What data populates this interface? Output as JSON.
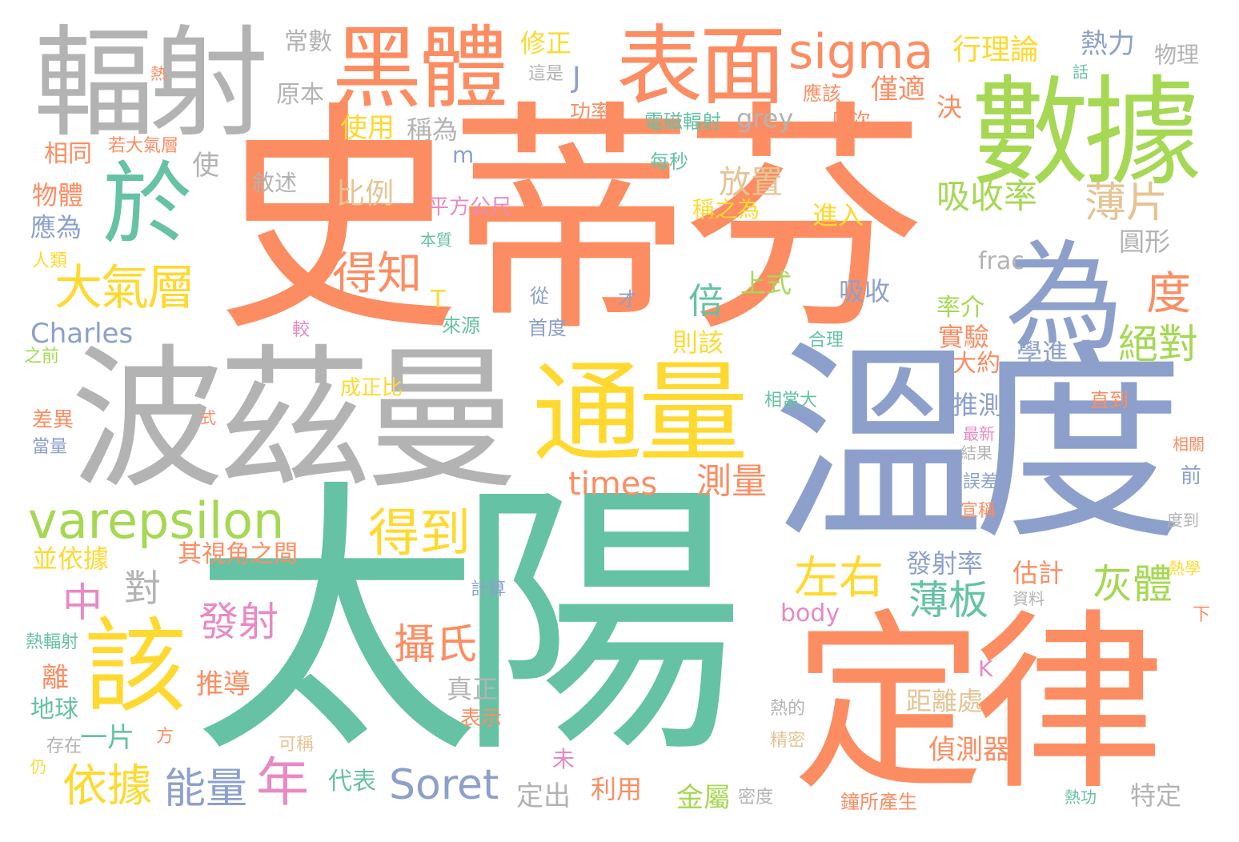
{
  "palette": [
    "#66c2a5",
    "#fc8d62",
    "#8da0cb",
    "#e78ac3",
    "#a6d854",
    "#ffd92f",
    "#e5c494",
    "#b3b3b3"
  ],
  "words": [
    {
      "text": "史蒂芬",
      "color": "#fc8d62"
    },
    {
      "text": "太陽",
      "color": "#66c2a5"
    },
    {
      "text": "溫度",
      "color": "#8da0cb"
    },
    {
      "text": "波茲曼",
      "color": "#b3b3b3"
    },
    {
      "text": "定律",
      "color": "#fc8d62"
    },
    {
      "text": "輻射",
      "color": "#b3b3b3"
    },
    {
      "text": "數據",
      "color": "#a6d854"
    },
    {
      "text": "為",
      "color": "#8da0cb"
    },
    {
      "text": "表面",
      "color": "#fc8d62"
    },
    {
      "text": "黑體",
      "color": "#fc8d62"
    },
    {
      "text": "通量",
      "color": "#ffd92f"
    },
    {
      "text": "於",
      "color": "#66c2a5"
    },
    {
      "text": "該",
      "color": "#ffd92f"
    },
    {
      "text": "sigma",
      "color": "#fc8d62"
    },
    {
      "text": "varepsilon",
      "color": "#a6d854"
    },
    {
      "text": "大氣層",
      "color": "#ffd92f"
    },
    {
      "text": "得到",
      "color": "#ffd92f"
    },
    {
      "text": "times",
      "color": "#fc8d62"
    },
    {
      "text": "測量",
      "color": "#fc8d62"
    },
    {
      "text": "Soret",
      "color": "#8da0cb"
    },
    {
      "text": "年",
      "color": "#e78ac3"
    },
    {
      "text": "吸收率",
      "color": "#a6d854"
    },
    {
      "text": "薄片",
      "color": "#e5c494"
    },
    {
      "text": "得知",
      "color": "#fc8d62"
    },
    {
      "text": "度",
      "color": "#fc8d62"
    },
    {
      "text": "絕對",
      "color": "#a6d854"
    },
    {
      "text": "倍",
      "color": "#66c2a5"
    },
    {
      "text": "左右",
      "color": "#ffd92f"
    },
    {
      "text": "薄板",
      "color": "#66c2a5"
    },
    {
      "text": "灰體",
      "color": "#a6d854"
    },
    {
      "text": "發射",
      "color": "#e78ac3"
    },
    {
      "text": "攝氏",
      "color": "#fc8d62"
    },
    {
      "text": "中",
      "color": "#e78ac3"
    },
    {
      "text": "對",
      "color": "#b3b3b3"
    },
    {
      "text": "依據",
      "color": "#ffd92f"
    },
    {
      "text": "能量",
      "color": "#8da0cb"
    },
    {
      "text": "Charles",
      "color": "#8da0cb"
    },
    {
      "text": "J",
      "color": "#8da0cb"
    },
    {
      "text": "熱力",
      "color": "#8da0cb"
    },
    {
      "text": "物理",
      "color": "#b3b3b3"
    },
    {
      "text": "行理論",
      "color": "#ffd92f"
    },
    {
      "text": "僅適",
      "color": "#fc8d62"
    },
    {
      "text": "修正",
      "color": "#ffd92f"
    },
    {
      "text": "常數",
      "color": "#b3b3b3"
    },
    {
      "text": "原本",
      "color": "#b3b3b3"
    },
    {
      "text": "使用",
      "color": "#ffd92f"
    },
    {
      "text": "稱為",
      "color": "#b3b3b3"
    },
    {
      "text": "比例",
      "color": "#e5c494"
    },
    {
      "text": "放置",
      "color": "#e5c494"
    },
    {
      "text": "敘述",
      "color": "#b3b3b3"
    },
    {
      "text": "grey",
      "color": "#b3b3b3"
    },
    {
      "text": "決",
      "color": "#fc8d62"
    },
    {
      "text": "應該",
      "color": "#fc8d62"
    },
    {
      "text": "四次",
      "color": "#fc8d62"
    },
    {
      "text": "電磁輻射",
      "color": "#66c2a5"
    },
    {
      "text": "功率",
      "color": "#fc8d62"
    },
    {
      "text": "這是",
      "color": "#b3b3b3"
    },
    {
      "text": "熱",
      "color": "#fc8d62"
    },
    {
      "text": "話",
      "color": "#66c2a5"
    },
    {
      "text": "每秒",
      "color": "#66c2a5"
    },
    {
      "text": "稱之為",
      "color": "#ffd92f"
    },
    {
      "text": "進入",
      "color": "#ffd92f"
    },
    {
      "text": "平方公尺",
      "color": "#e78ac3"
    },
    {
      "text": "本質",
      "color": "#66c2a5"
    },
    {
      "text": "m",
      "color": "#8da0cb"
    },
    {
      "text": "使",
      "color": "#b3b3b3"
    },
    {
      "text": "若大氣層",
      "color": "#fc8d62"
    },
    {
      "text": "相同",
      "color": "#fc8d62"
    },
    {
      "text": "物體",
      "color": "#fc8d62"
    },
    {
      "text": "應為",
      "color": "#8da0cb"
    },
    {
      "text": "人類",
      "color": "#ffd92f"
    },
    {
      "text": "之前",
      "color": "#a6d854"
    },
    {
      "text": "T",
      "color": "#ffd92f"
    },
    {
      "text": "上式",
      "color": "#a6d854"
    },
    {
      "text": "從",
      "color": "#8da0cb"
    },
    {
      "text": "才",
      "color": "#8da0cb"
    },
    {
      "text": "來源",
      "color": "#66c2a5"
    },
    {
      "text": "首度",
      "color": "#8da0cb"
    },
    {
      "text": "較",
      "color": "#e78ac3"
    },
    {
      "text": "則該",
      "color": "#ffd92f"
    },
    {
      "text": "合理",
      "color": "#66c2a5"
    },
    {
      "text": "吸收",
      "color": "#8da0cb"
    },
    {
      "text": "frac",
      "color": "#b3b3b3"
    },
    {
      "text": "圓形",
      "color": "#b3b3b3"
    },
    {
      "text": "率介",
      "color": "#a6d854"
    },
    {
      "text": "實驗",
      "color": "#fc8d62"
    },
    {
      "text": "學進",
      "color": "#8da0cb"
    },
    {
      "text": "大約",
      "color": "#fc8d62"
    },
    {
      "text": "成正比",
      "color": "#ffd92f"
    },
    {
      "text": "相當大",
      "color": "#66c2a5"
    },
    {
      "text": "直到",
      "color": "#fc8d62"
    },
    {
      "text": "推測",
      "color": "#8da0cb"
    },
    {
      "text": "最新",
      "color": "#e78ac3"
    },
    {
      "text": "結果",
      "color": "#b3b3b3"
    },
    {
      "text": "相關",
      "color": "#fc8d62"
    },
    {
      "text": "前",
      "color": "#8da0cb"
    },
    {
      "text": "誤差",
      "color": "#8da0cb"
    },
    {
      "text": "宣稱",
      "color": "#fc8d62"
    },
    {
      "text": "度到",
      "color": "#b3b3b3"
    },
    {
      "text": "差異",
      "color": "#fc8d62"
    },
    {
      "text": "當量",
      "color": "#8da0cb"
    },
    {
      "text": "式",
      "color": "#fc8d62"
    },
    {
      "text": "其視角之間",
      "color": "#fc8d62"
    },
    {
      "text": "並依據",
      "color": "#ffd92f"
    },
    {
      "text": "發射率",
      "color": "#8da0cb"
    },
    {
      "text": "估計",
      "color": "#fc8d62"
    },
    {
      "text": "熱學",
      "color": "#ffd92f"
    },
    {
      "text": "資料",
      "color": "#b3b3b3"
    },
    {
      "text": "計算",
      "color": "#8da0cb"
    },
    {
      "text": "body",
      "color": "#e78ac3"
    },
    {
      "text": "下",
      "color": "#fc8d62"
    },
    {
      "text": "熱輻射",
      "color": "#66c2a5"
    },
    {
      "text": "推導",
      "color": "#fc8d62"
    },
    {
      "text": "離",
      "color": "#fc8d62"
    },
    {
      "text": "真正",
      "color": "#b3b3b3"
    },
    {
      "text": "K",
      "color": "#e78ac3"
    },
    {
      "text": "地球",
      "color": "#66c2a5"
    },
    {
      "text": "距離處",
      "color": "#e5c494"
    },
    {
      "text": "熱的",
      "color": "#b3b3b3"
    },
    {
      "text": "表示",
      "color": "#fc8d62"
    },
    {
      "text": "一片",
      "color": "#66c2a5"
    },
    {
      "text": "方",
      "color": "#fc8d62"
    },
    {
      "text": "存在",
      "color": "#b3b3b3"
    },
    {
      "text": "可稱",
      "color": "#e5c494"
    },
    {
      "text": "精密",
      "color": "#e5c494"
    },
    {
      "text": "偵測器",
      "color": "#fc8d62"
    },
    {
      "text": "未",
      "color": "#e78ac3"
    },
    {
      "text": "仍",
      "color": "#ffd92f"
    },
    {
      "text": "代表",
      "color": "#66c2a5"
    },
    {
      "text": "定出",
      "color": "#b3b3b3"
    },
    {
      "text": "利用",
      "color": "#fc8d62"
    },
    {
      "text": "金屬",
      "color": "#a6d854"
    },
    {
      "text": "密度",
      "color": "#b3b3b3"
    },
    {
      "text": "鐘所產生",
      "color": "#fc8d62"
    },
    {
      "text": "熱功",
      "color": "#66c2a5"
    },
    {
      "text": "特定",
      "color": "#b3b3b3"
    }
  ]
}
